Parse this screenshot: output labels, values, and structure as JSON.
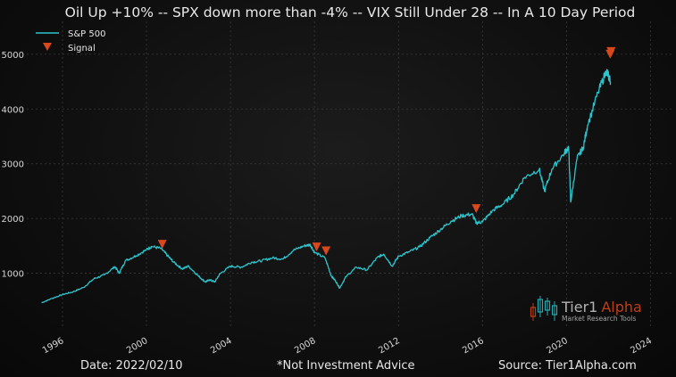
{
  "chart_data": {
    "type": "line",
    "title": "Oil Up +10% -- SPX down more than -4% -- VIX Still Under 28 -- In A 10 Day Period",
    "xlabel": "",
    "ylabel": "",
    "x_ticks": [
      "1996",
      "2000",
      "2004",
      "2008",
      "2012",
      "2016",
      "2020",
      "2024"
    ],
    "y_ticks": [
      1000,
      2000,
      3000,
      4000,
      5000
    ],
    "xlim": [
      1994.3,
      2025.0
    ],
    "ylim": [
      0,
      5600
    ],
    "grid": true,
    "legend_position": "top-left",
    "legend": {
      "line_label": "S&P 500",
      "marker_label": "Signal"
    },
    "series": [
      {
        "name": "S&P 500",
        "x": [
          1995.0,
          1995.5,
          1996.0,
          1996.5,
          1997.0,
          1997.5,
          1998.0,
          1998.5,
          1998.7,
          1999.0,
          1999.5,
          2000.0,
          2000.25,
          2000.7,
          2001.0,
          2001.3,
          2001.7,
          2002.0,
          2002.5,
          2002.8,
          2003.0,
          2003.25,
          2003.5,
          2004.0,
          2004.5,
          2005.0,
          2005.5,
          2006.0,
          2006.5,
          2007.0,
          2007.5,
          2007.8,
          2008.0,
          2008.5,
          2008.8,
          2009.0,
          2009.2,
          2009.5,
          2010.0,
          2010.5,
          2011.0,
          2011.3,
          2011.7,
          2012.0,
          2012.5,
          2013.0,
          2013.5,
          2014.0,
          2014.5,
          2015.0,
          2015.5,
          2015.7,
          2016.0,
          2016.5,
          2017.0,
          2017.5,
          2018.0,
          2018.7,
          2018.95,
          2019.3,
          2019.9,
          2020.1,
          2020.2,
          2020.5,
          2020.8,
          2021.0,
          2021.5,
          2021.9,
          2022.0,
          2022.1
        ],
        "values": [
          460,
          540,
          610,
          660,
          740,
          900,
          970,
          1120,
          1000,
          1230,
          1320,
          1430,
          1490,
          1450,
          1320,
          1200,
          1080,
          1130,
          940,
          840,
          880,
          840,
          990,
          1130,
          1110,
          1200,
          1230,
          1280,
          1260,
          1420,
          1500,
          1520,
          1380,
          1280,
          950,
          860,
          730,
          940,
          1110,
          1060,
          1290,
          1350,
          1130,
          1310,
          1390,
          1480,
          1650,
          1800,
          1950,
          2050,
          2080,
          1920,
          1940,
          2150,
          2270,
          2450,
          2750,
          2900,
          2500,
          2900,
          3200,
          3300,
          2300,
          3100,
          3300,
          3700,
          4300,
          4700,
          4600,
          4500
        ]
      }
    ],
    "signals": {
      "name": "Signal",
      "x": [
        2000.75,
        2008.1,
        2008.55,
        2015.7,
        2022.08,
        2022.12
      ],
      "values": [
        1480,
        1430,
        1360,
        2130,
        4950,
        5000
      ]
    },
    "colors": {
      "line": "#2ec4cc",
      "signal": "#d9481c",
      "grid": "#3a3a3a"
    }
  },
  "watermark": {
    "brand_a": "Tier1",
    "brand_b": "Alpha",
    "tagline": "Market Research Tools"
  },
  "footer": {
    "date": "Date: 2022/02/10",
    "advice": "*Not Investment Advice",
    "source": "Source: Tier1Alpha.com"
  }
}
